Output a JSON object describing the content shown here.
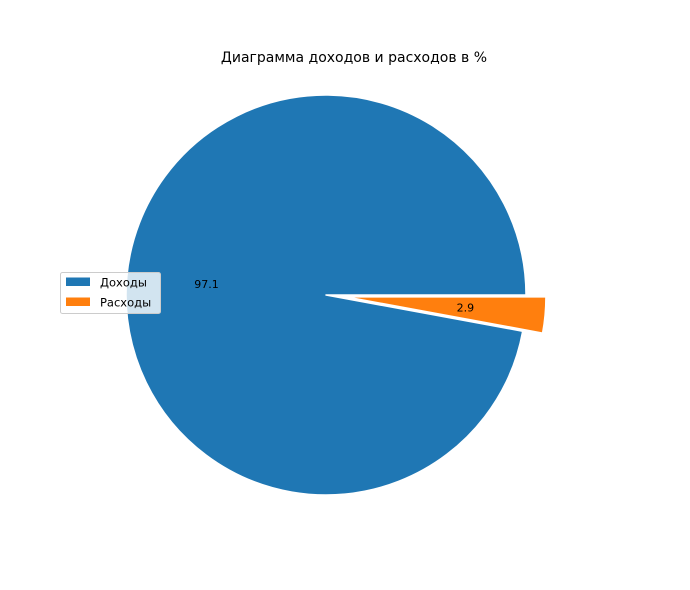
{
  "chart_data": {
    "type": "pie",
    "title": "Диаграмма доходов и расходов в %",
    "categories": [
      "Доходы",
      "Расходы"
    ],
    "values": [
      97.1,
      2.9
    ],
    "value_labels": [
      "97.1",
      "2.9"
    ],
    "colors": [
      "#1f77b4",
      "#ff7f0e"
    ],
    "explode": [
      0,
      0.1
    ],
    "start_angle": 0,
    "direction": "counterclockwise",
    "legend_loc": "center-left"
  }
}
